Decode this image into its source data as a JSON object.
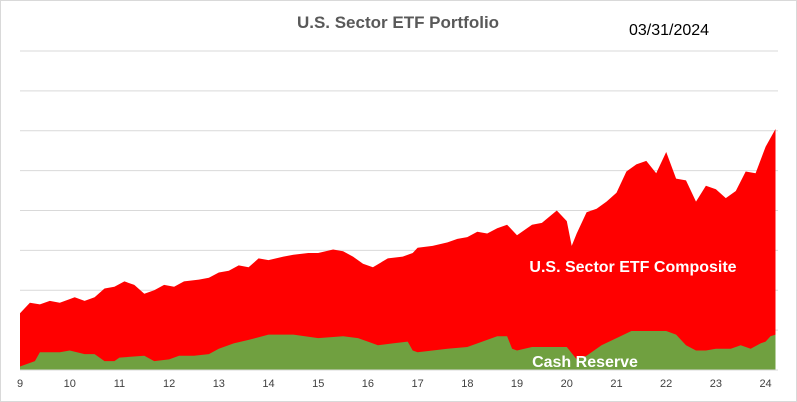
{
  "chart_data": {
    "type": "area",
    "stacked": true,
    "title": "U.S. Sector ETF Portfolio",
    "date_label": "03/31/2024",
    "xlabel": "",
    "ylabel": "",
    "y_tick_labels_visible": false,
    "grid": true,
    "y_gridlines": 8,
    "ylim": [
      0,
      9
    ],
    "x_ticks": [
      "9",
      "10",
      "11",
      "12",
      "13",
      "14",
      "15",
      "16",
      "17",
      "18",
      "19",
      "20",
      "21",
      "22",
      "23",
      "24"
    ],
    "x_tick_positions": [
      9,
      10,
      11,
      12,
      13,
      14,
      15,
      16,
      17,
      18,
      19,
      20,
      21,
      22,
      23,
      24
    ],
    "xlim": [
      9,
      24.25
    ],
    "colors": {
      "composite": "#ff0000",
      "cash": "#70a040",
      "grid": "#d9d9d9",
      "title": "#595959"
    },
    "series": [
      {
        "name": "Cash Reserve",
        "points": [
          [
            9.0,
            0.1
          ],
          [
            9.3,
            0.25
          ],
          [
            9.4,
            0.5
          ],
          [
            9.8,
            0.5
          ],
          [
            10.0,
            0.55
          ],
          [
            10.3,
            0.45
          ],
          [
            10.5,
            0.45
          ],
          [
            10.7,
            0.25
          ],
          [
            10.9,
            0.25
          ],
          [
            11.0,
            0.35
          ],
          [
            11.5,
            0.4
          ],
          [
            11.7,
            0.25
          ],
          [
            12.0,
            0.3
          ],
          [
            12.2,
            0.4
          ],
          [
            12.5,
            0.4
          ],
          [
            12.8,
            0.45
          ],
          [
            13.0,
            0.6
          ],
          [
            13.3,
            0.75
          ],
          [
            13.6,
            0.85
          ],
          [
            14.0,
            1.0
          ],
          [
            14.5,
            1.0
          ],
          [
            15.0,
            0.9
          ],
          [
            15.5,
            0.95
          ],
          [
            15.8,
            0.9
          ],
          [
            16.0,
            0.8
          ],
          [
            16.2,
            0.7
          ],
          [
            16.5,
            0.75
          ],
          [
            16.8,
            0.8
          ],
          [
            16.9,
            0.55
          ],
          [
            17.0,
            0.5
          ],
          [
            17.3,
            0.55
          ],
          [
            17.6,
            0.6
          ],
          [
            18.0,
            0.65
          ],
          [
            18.3,
            0.8
          ],
          [
            18.6,
            0.95
          ],
          [
            18.8,
            0.95
          ],
          [
            18.9,
            0.6
          ],
          [
            19.0,
            0.55
          ],
          [
            19.3,
            0.65
          ],
          [
            19.6,
            0.65
          ],
          [
            20.0,
            0.65
          ],
          [
            20.2,
            0.3
          ],
          [
            20.4,
            0.4
          ],
          [
            20.7,
            0.7
          ],
          [
            21.0,
            0.9
          ],
          [
            21.3,
            1.1
          ],
          [
            21.7,
            1.1
          ],
          [
            22.0,
            1.1
          ],
          [
            22.2,
            1.0
          ],
          [
            22.4,
            0.7
          ],
          [
            22.6,
            0.55
          ],
          [
            22.8,
            0.55
          ],
          [
            23.0,
            0.6
          ],
          [
            23.3,
            0.6
          ],
          [
            23.5,
            0.7
          ],
          [
            23.7,
            0.6
          ],
          [
            23.9,
            0.75
          ],
          [
            24.0,
            0.8
          ],
          [
            24.1,
            0.95
          ],
          [
            24.2,
            1.0
          ]
        ]
      },
      {
        "name": "U.S. Sector ETF Composite",
        "points": [
          [
            9.0,
            1.6
          ],
          [
            9.2,
            1.9
          ],
          [
            9.4,
            1.85
          ],
          [
            9.6,
            1.95
          ],
          [
            9.8,
            1.9
          ],
          [
            10.0,
            2.0
          ],
          [
            10.1,
            2.05
          ],
          [
            10.3,
            1.95
          ],
          [
            10.5,
            2.05
          ],
          [
            10.7,
            2.3
          ],
          [
            10.9,
            2.35
          ],
          [
            11.1,
            2.5
          ],
          [
            11.3,
            2.4
          ],
          [
            11.5,
            2.15
          ],
          [
            11.7,
            2.25
          ],
          [
            11.9,
            2.4
          ],
          [
            12.1,
            2.35
          ],
          [
            12.3,
            2.5
          ],
          [
            12.6,
            2.55
          ],
          [
            12.8,
            2.6
          ],
          [
            13.0,
            2.75
          ],
          [
            13.2,
            2.8
          ],
          [
            13.4,
            2.95
          ],
          [
            13.6,
            2.9
          ],
          [
            13.8,
            3.15
          ],
          [
            14.0,
            3.1
          ],
          [
            14.3,
            3.2
          ],
          [
            14.5,
            3.25
          ],
          [
            14.8,
            3.3
          ],
          [
            15.0,
            3.3
          ],
          [
            15.3,
            3.4
          ],
          [
            15.5,
            3.35
          ],
          [
            15.7,
            3.2
          ],
          [
            15.9,
            3.0
          ],
          [
            16.1,
            2.9
          ],
          [
            16.4,
            3.15
          ],
          [
            16.7,
            3.2
          ],
          [
            16.9,
            3.3
          ],
          [
            17.0,
            3.45
          ],
          [
            17.3,
            3.5
          ],
          [
            17.6,
            3.6
          ],
          [
            17.8,
            3.7
          ],
          [
            18.0,
            3.75
          ],
          [
            18.2,
            3.9
          ],
          [
            18.4,
            3.85
          ],
          [
            18.6,
            4.0
          ],
          [
            18.8,
            4.1
          ],
          [
            19.0,
            3.8
          ],
          [
            19.1,
            3.9
          ],
          [
            19.3,
            4.1
          ],
          [
            19.5,
            4.15
          ],
          [
            19.8,
            4.5
          ],
          [
            20.0,
            4.2
          ],
          [
            20.1,
            3.5
          ],
          [
            20.2,
            3.85
          ],
          [
            20.4,
            4.45
          ],
          [
            20.6,
            4.55
          ],
          [
            20.8,
            4.75
          ],
          [
            21.0,
            5.0
          ],
          [
            21.2,
            5.6
          ],
          [
            21.4,
            5.8
          ],
          [
            21.6,
            5.9
          ],
          [
            21.8,
            5.55
          ],
          [
            22.0,
            6.15
          ],
          [
            22.2,
            5.4
          ],
          [
            22.4,
            5.35
          ],
          [
            22.6,
            4.75
          ],
          [
            22.8,
            5.2
          ],
          [
            23.0,
            5.1
          ],
          [
            23.2,
            4.85
          ],
          [
            23.4,
            5.05
          ],
          [
            23.6,
            5.6
          ],
          [
            23.8,
            5.55
          ],
          [
            24.0,
            6.3
          ],
          [
            24.2,
            6.8
          ]
        ]
      }
    ],
    "annotations": [
      {
        "text": "U.S. Sector ETF Composite",
        "series": "U.S. Sector ETF Composite"
      },
      {
        "text": "Cash Reserve",
        "series": "Cash Reserve"
      }
    ]
  }
}
